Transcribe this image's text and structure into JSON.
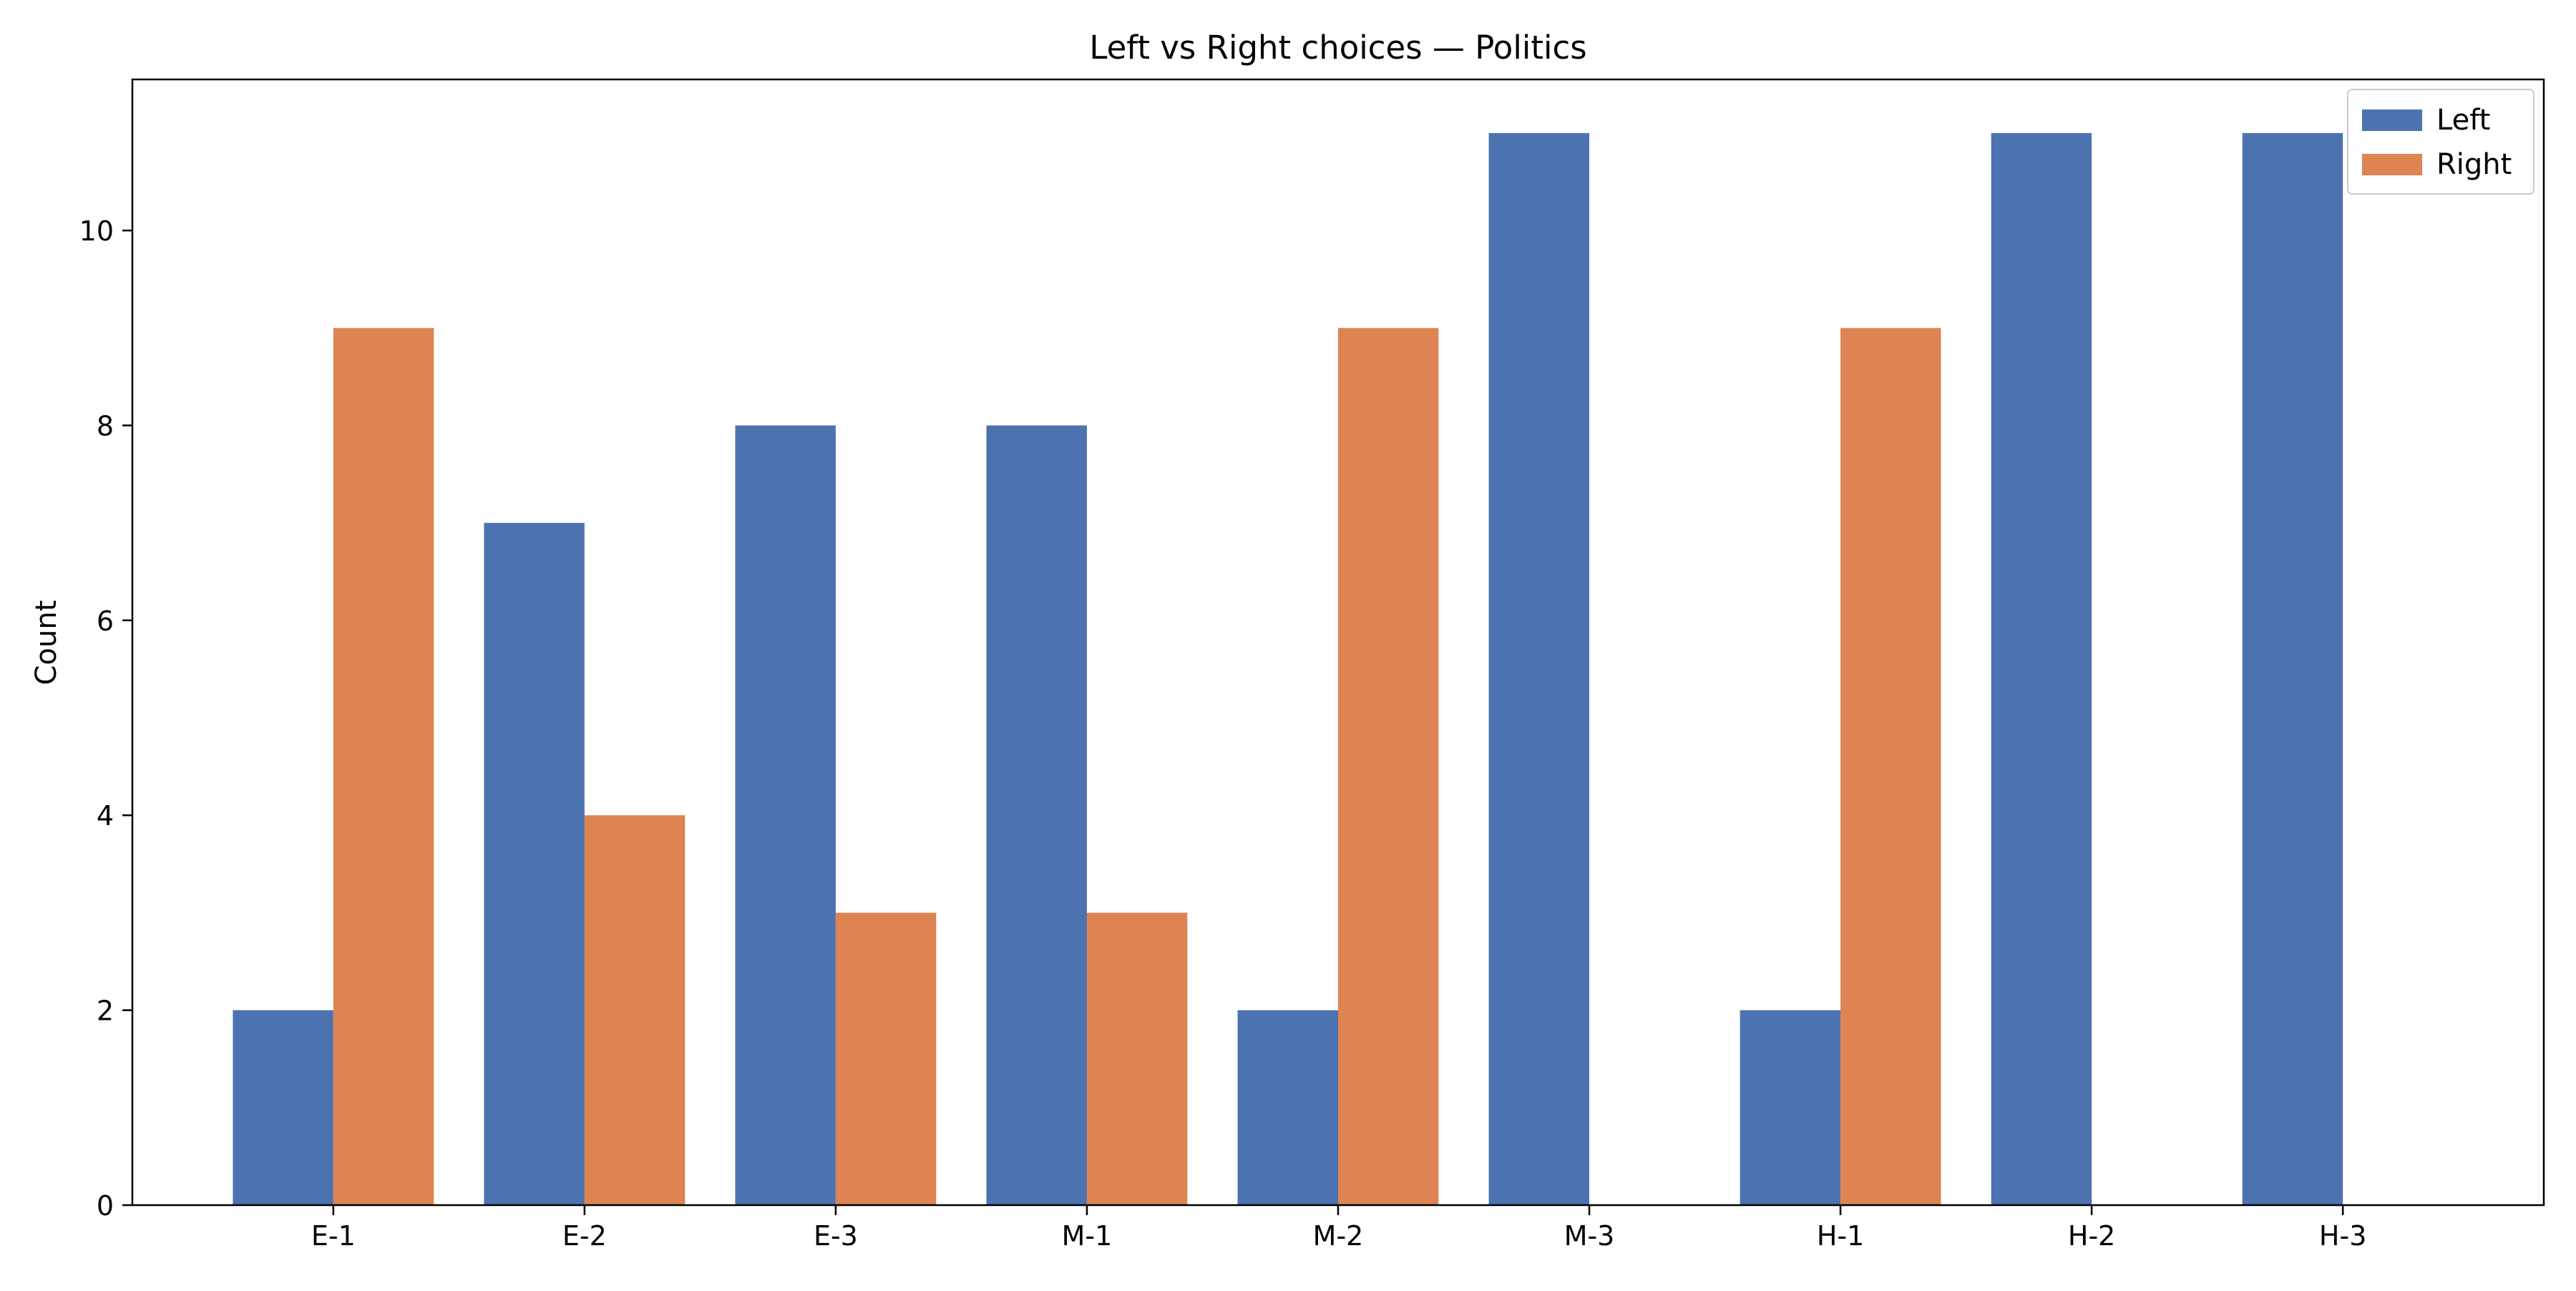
{
  "chart_data": {
    "type": "bar",
    "title": "Left vs Right choices — Politics",
    "xlabel": "",
    "ylabel": "Count",
    "categories": [
      "E-1",
      "E-2",
      "E-3",
      "M-1",
      "M-2",
      "M-3",
      "H-1",
      "H-2",
      "H-3"
    ],
    "series": [
      {
        "name": "Left",
        "color": "#4c72b0",
        "values": [
          2,
          7,
          8,
          8,
          2,
          11,
          2,
          11,
          11
        ]
      },
      {
        "name": "Right",
        "color": "#dd8452",
        "values": [
          9,
          4,
          3,
          3,
          9,
          0,
          9,
          0,
          0
        ]
      }
    ],
    "ylim": [
      0,
      11.55
    ],
    "yticks": [
      0,
      2,
      4,
      6,
      8,
      10
    ],
    "grid": false,
    "legend_position": "top-right"
  }
}
